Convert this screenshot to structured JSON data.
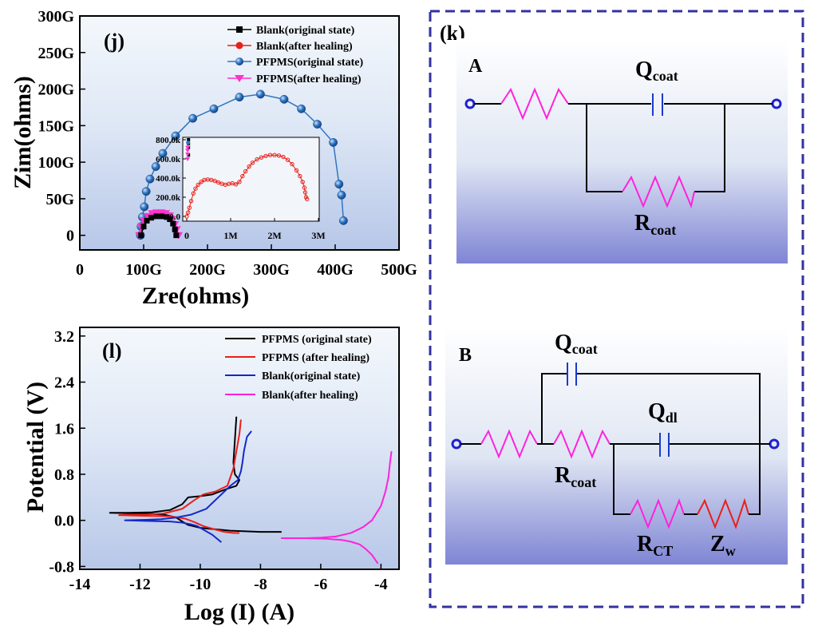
{
  "colors": {
    "blank_original": "#000000",
    "blank_healing": "#e8201a",
    "pfpms_original": "#2f76c2",
    "pfpms_healing": "#ff33cc",
    "tafel_pfpms_original": "#000000",
    "tafel_pfpms_healing": "#e8201a",
    "tafel_blank_original": "#1428c8",
    "tafel_blank_healing": "#ff22dd",
    "resistor_pink": "#ff22dd",
    "resistor_red": "#e8201a",
    "capacitor_blue": "#1a3acc",
    "terminal_blue": "#2020d0",
    "frame_dashed": "#3232a0"
  },
  "chart_data": [
    {
      "type": "scatter",
      "panel": "(j)",
      "xlabel": "Zre(ohms)",
      "ylabel": "Zim(ohms)",
      "xlim": [
        0,
        500
      ],
      "ylim": [
        -20,
        300
      ],
      "x_ticks": [
        "0",
        "100G",
        "200G",
        "300G",
        "400G",
        "500G"
      ],
      "y_ticks": [
        "0",
        "50G",
        "100G",
        "150G",
        "200G",
        "250G",
        "300G"
      ],
      "legend": [
        "Blank(original state)",
        "Blank(after healing)",
        "PFPMS(original state)",
        "PFPMS(after healing)"
      ],
      "series": [
        {
          "name": "PFPMS(original state)",
          "x": [
            95,
            96,
            98,
            101,
            104,
            110,
            119,
            130,
            150,
            177,
            210,
            250,
            283,
            320,
            347,
            372,
            397,
            406,
            410,
            413
          ],
          "y": [
            0,
            12,
            25,
            39,
            60,
            77,
            94,
            112,
            136,
            160,
            173,
            189,
            193,
            186,
            173,
            152,
            127,
            70,
            55,
            20
          ]
        },
        {
          "name": "PFPMS(after healing)",
          "x": [
            93,
            96,
            100,
            106,
            113,
            120,
            128,
            135,
            141,
            145,
            149,
            152,
            155
          ],
          "y": [
            0,
            12,
            20,
            26,
            30,
            31,
            31,
            30,
            27,
            22,
            15,
            8,
            0
          ]
        },
        {
          "name": "Blank(original state)",
          "x": [
            96,
            100,
            105,
            112,
            120,
            128,
            136,
            141,
            146,
            149,
            151
          ],
          "y": [
            0,
            12,
            20,
            24,
            26,
            26,
            25,
            22,
            16,
            8,
            0
          ]
        },
        {
          "name": "Blank(after healing)",
          "x": [],
          "y": []
        }
      ],
      "inset": {
        "x_ticks": [
          "0",
          "1M",
          "2M",
          "3M"
        ],
        "y_ticks": [
          "0.0",
          "200.0k",
          "400.0k",
          "600.0k",
          "800.0k"
        ],
        "xlim": [
          0,
          3
        ],
        "ylim": [
          0,
          800
        ],
        "series": [
          {
            "name": "Blank(after healing)",
            "x": [
              0,
              0.03,
              0.06,
              0.1,
              0.15,
              0.2,
              0.26,
              0.33,
              0.4,
              0.48,
              0.56,
              0.64,
              0.72,
              0.8,
              0.88,
              0.96,
              1.04,
              1.12,
              1.2,
              1.27,
              1.34,
              1.42,
              1.5,
              1.6,
              1.7,
              1.8,
              1.9,
              2.0,
              2.1,
              2.2,
              2.3,
              2.4,
              2.5,
              2.58,
              2.64,
              2.68,
              2.7,
              2.72,
              2.74
            ],
            "y": [
              0,
              40,
              90,
              160,
              240,
              290,
              330,
              360,
              380,
              385,
              380,
              370,
              355,
              340,
              330,
              340,
              345,
              335,
              360,
              420,
              470,
              520,
              560,
              595,
              615,
              630,
              640,
              640,
              635,
              620,
              590,
              545,
              480,
              420,
              360,
              300,
              250,
              200,
              180
            ]
          },
          {
            "name": "Blank(original state)",
            "x": [
              0.04,
              0.04,
              0.04,
              0.04
            ],
            "y": [
              640,
              720,
              760,
              800
            ]
          },
          {
            "name": "PFPMS(after healing)",
            "x": [
              0.02,
              0.02,
              0.02,
              0.02
            ],
            "y": [
              600,
              650,
              690,
              720
            ]
          },
          {
            "name": "PFPMS(original state)",
            "x": [
              0.03
            ],
            "y": [
              770
            ]
          }
        ]
      }
    },
    {
      "type": "line",
      "panel": "(l)",
      "xlabel": "Log (I) (A)",
      "ylabel": "Potential (V)",
      "xlim": [
        -14,
        -3.4
      ],
      "ylim": [
        -0.85,
        3.35
      ],
      "x_ticks": [
        "-14",
        "-12",
        "-10",
        "-8",
        "-6",
        "-4"
      ],
      "y_ticks": [
        "-0.8",
        "0.0",
        "0.8",
        "1.6",
        "2.4",
        "3.2"
      ],
      "legend": [
        "PFPMS (original state)",
        "PFPMS (after healing)",
        "Blank(original state)",
        "Blank(after healing)"
      ],
      "series": [
        {
          "name": "PFPMS (original state)",
          "x": [
            -8.8,
            -8.85,
            -8.9,
            -8.85,
            -8.7,
            -8.8,
            -9.1,
            -9.6,
            -10.0,
            -10.4,
            -10.6,
            -11.0,
            -11.6,
            -12.4,
            -13.0,
            -12.0,
            -11.2,
            -10.8,
            -10.6,
            -10.4,
            -10.0,
            -9.0,
            -8.0,
            -7.3
          ],
          "y": [
            1.8,
            1.4,
            1.0,
            0.8,
            0.7,
            0.6,
            0.55,
            0.45,
            0.42,
            0.4,
            0.28,
            0.18,
            0.14,
            0.13,
            0.13,
            0.12,
            0.1,
            0.05,
            -0.02,
            -0.08,
            -0.13,
            -0.18,
            -0.2,
            -0.2
          ]
        },
        {
          "name": "PFPMS (after healing)",
          "x": [
            -8.65,
            -8.7,
            -8.8,
            -8.9,
            -9.1,
            -9.5,
            -9.9,
            -10.2,
            -10.6,
            -11.2,
            -11.8,
            -12.4,
            -12.7,
            -12.0,
            -11.0,
            -10.5,
            -10.2,
            -9.9,
            -9.5,
            -9.2,
            -8.9,
            -8.7
          ],
          "y": [
            1.75,
            1.5,
            1.2,
            0.9,
            0.6,
            0.5,
            0.45,
            0.35,
            0.2,
            0.12,
            0.1,
            0.1,
            0.09,
            0.08,
            0.07,
            0.03,
            -0.03,
            -0.1,
            -0.16,
            -0.2,
            -0.22,
            -0.22
          ]
        },
        {
          "name": "Blank(original state)",
          "x": [
            -8.3,
            -8.45,
            -8.55,
            -8.6,
            -8.65,
            -8.75,
            -9.0,
            -9.4,
            -9.8,
            -10.3,
            -10.8,
            -11.3,
            -11.8,
            -12.5,
            -11.8,
            -11.0,
            -10.6,
            -10.3,
            -10.1,
            -9.9,
            -9.6,
            -9.3
          ],
          "y": [
            1.55,
            1.45,
            1.2,
            1.0,
            0.85,
            0.7,
            0.6,
            0.4,
            0.2,
            0.1,
            0.05,
            0.02,
            0.01,
            0.0,
            -0.01,
            -0.02,
            -0.04,
            -0.07,
            -0.1,
            -0.16,
            -0.25,
            -0.38
          ]
        },
        {
          "name": "Blank(after healing)",
          "x": [
            -3.65,
            -3.7,
            -3.75,
            -3.85,
            -4.0,
            -4.3,
            -4.6,
            -5.0,
            -5.5,
            -6.0,
            -6.5,
            -7.0,
            -7.3,
            -6.5,
            -5.8,
            -5.3,
            -5.0,
            -4.7,
            -4.5,
            -4.3,
            -4.1
          ],
          "y": [
            1.2,
            1.0,
            0.75,
            0.5,
            0.25,
            0.0,
            -0.12,
            -0.22,
            -0.28,
            -0.3,
            -0.31,
            -0.31,
            -0.31,
            -0.31,
            -0.32,
            -0.34,
            -0.37,
            -0.42,
            -0.5,
            -0.6,
            -0.75
          ]
        }
      ]
    }
  ],
  "circuit": {
    "panel_label": "(k)",
    "a": {
      "label": "A",
      "q_coat": {
        "main": "Q",
        "sub": "coat"
      },
      "r_coat": {
        "main": "R",
        "sub": "coat"
      }
    },
    "b": {
      "label": "B",
      "q_coat": {
        "main": "Q",
        "sub": "coat"
      },
      "q_dl": {
        "main": "Q",
        "sub": "dl"
      },
      "r_coat": {
        "main": "R",
        "sub": "coat"
      },
      "r_ct": {
        "main": "R",
        "sub": "CT"
      },
      "z_w": {
        "main": "Z",
        "sub": "w"
      }
    }
  }
}
